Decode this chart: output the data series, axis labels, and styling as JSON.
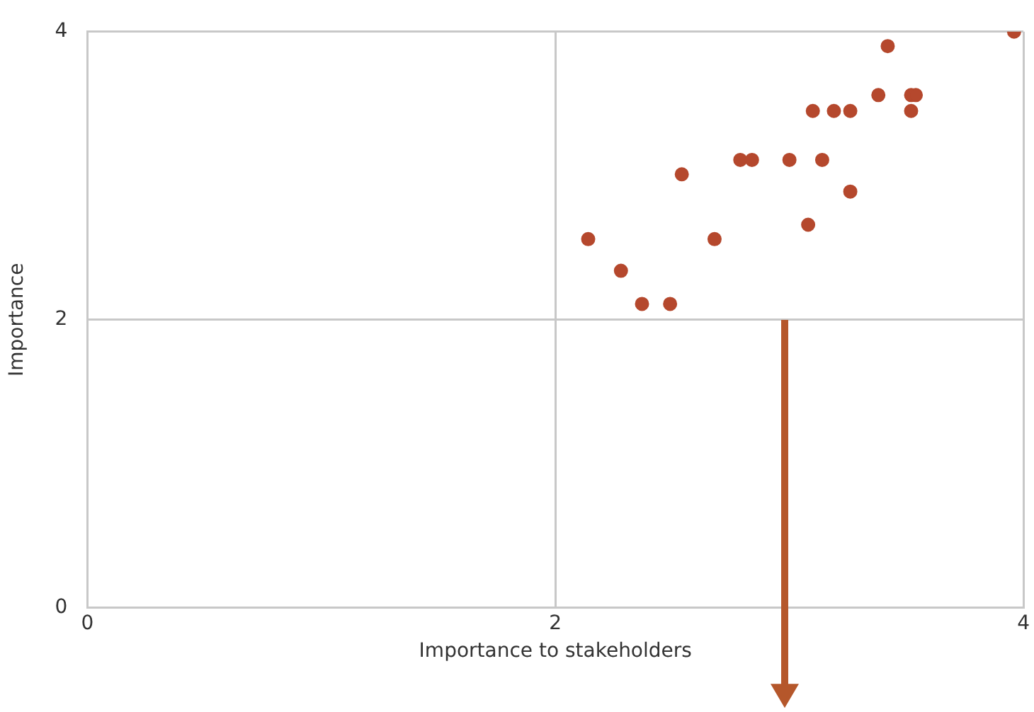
{
  "chart_data": {
    "type": "scatter",
    "xlabel": "Importance to stakeholders",
    "ylabel": "Importance",
    "x": [
      2.14,
      2.28,
      2.37,
      2.49,
      2.54,
      2.68,
      2.79,
      2.84,
      3.0,
      3.08,
      3.1,
      3.14,
      3.19,
      3.26,
      3.26,
      3.38,
      3.42,
      3.52,
      3.52,
      3.54,
      3.96
    ],
    "values": [
      2.56,
      2.34,
      2.11,
      2.11,
      3.01,
      2.56,
      3.11,
      3.11,
      3.11,
      2.66,
      3.45,
      3.11,
      3.45,
      3.45,
      2.89,
      3.56,
      3.9,
      3.56,
      3.45,
      3.56,
      4.0
    ],
    "color": "#b5482d",
    "marker": "circle",
    "xlim": [
      0,
      4
    ],
    "ylim": [
      0,
      4
    ],
    "xticks": [
      0,
      2,
      4
    ],
    "yticks": [
      0,
      2,
      4
    ],
    "grid": true,
    "legend": false
  }
}
